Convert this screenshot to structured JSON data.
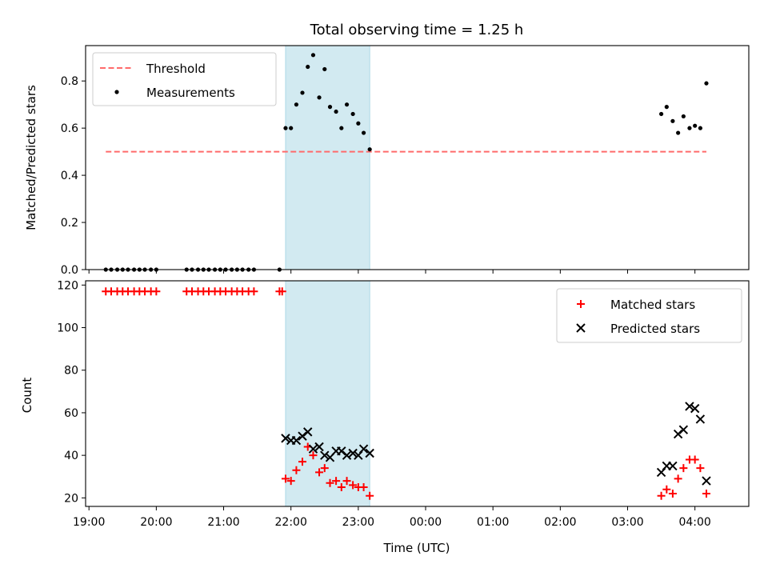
{
  "chart_data": [
    {
      "type": "scatter",
      "title": "Total observing time = 1.25 h",
      "xlabel": "",
      "ylabel": "Matched/Predicted stars",
      "ylim": [
        0,
        0.95
      ],
      "yticks": [
        "0.0",
        "0.2",
        "0.4",
        "0.6",
        "0.8"
      ],
      "ytick_values": [
        0,
        0.2,
        0.4,
        0.6,
        0.8
      ],
      "xlim_hours": [
        18.95,
        28.8
      ],
      "highlight_span_hours": [
        21.92,
        23.17
      ],
      "highlight_color": "#add8e6",
      "legend_position": "upper left",
      "threshold": {
        "name": "Threshold",
        "value": 0.5,
        "x_hours": [
          19.25,
          28.17
        ],
        "color": "#ff6b6b"
      },
      "series": [
        {
          "name": "Measurements",
          "color": "#000000",
          "x_hours": [
            19.25,
            19.33,
            19.42,
            19.5,
            19.58,
            19.67,
            19.75,
            19.83,
            19.92,
            20.0,
            20.45,
            20.53,
            20.62,
            20.7,
            20.78,
            20.87,
            20.95,
            21.03,
            21.12,
            21.2,
            21.28,
            21.37,
            21.45,
            21.83,
            21.92,
            22.0,
            22.08,
            22.17,
            22.25,
            22.33,
            22.42,
            22.5,
            22.58,
            22.67,
            22.75,
            22.83,
            22.92,
            23.0,
            23.08,
            23.17,
            27.5,
            27.58,
            27.67,
            27.75,
            27.83,
            27.92,
            28.0,
            28.08,
            28.17
          ],
          "y": [
            0,
            0,
            0,
            0,
            0,
            0,
            0,
            0,
            0,
            0,
            0,
            0,
            0,
            0,
            0,
            0,
            0,
            0,
            0,
            0,
            0,
            0,
            0,
            0,
            0.6,
            0.6,
            0.7,
            0.75,
            0.86,
            0.91,
            0.73,
            0.85,
            0.69,
            0.67,
            0.6,
            0.7,
            0.66,
            0.62,
            0.58,
            0.51,
            0.66,
            0.69,
            0.63,
            0.58,
            0.65,
            0.6,
            0.61,
            0.6,
            0.79
          ]
        }
      ]
    },
    {
      "type": "scatter",
      "title": "",
      "xlabel": "Time (UTC)",
      "ylabel": "Count",
      "ylim": [
        16,
        122
      ],
      "yticks": [
        "20",
        "40",
        "60",
        "80",
        "100",
        "120"
      ],
      "ytick_values": [
        20,
        40,
        60,
        80,
        100,
        120
      ],
      "xticks": [
        "19:00",
        "20:00",
        "21:00",
        "22:00",
        "23:00",
        "00:00",
        "01:00",
        "02:00",
        "03:00",
        "04:00"
      ],
      "xtick_hours": [
        19,
        20,
        21,
        22,
        23,
        24,
        25,
        26,
        27,
        28
      ],
      "xlim_hours": [
        18.95,
        28.8
      ],
      "highlight_span_hours": [
        21.92,
        23.17
      ],
      "highlight_color": "#add8e6",
      "legend_position": "upper right",
      "series": [
        {
          "name": "Matched stars",
          "marker": "+",
          "color": "#ff0000",
          "x_hours": [
            19.25,
            19.33,
            19.42,
            19.5,
            19.58,
            19.67,
            19.75,
            19.83,
            19.92,
            20.0,
            20.45,
            20.53,
            20.62,
            20.7,
            20.78,
            20.87,
            20.95,
            21.03,
            21.12,
            21.2,
            21.28,
            21.37,
            21.45,
            21.83,
            21.87,
            21.92,
            22.0,
            22.08,
            22.17,
            22.25,
            22.33,
            22.42,
            22.5,
            22.58,
            22.67,
            22.75,
            22.83,
            22.92,
            23.0,
            23.08,
            23.17,
            27.5,
            27.58,
            27.67,
            27.75,
            27.83,
            27.92,
            28.0,
            28.08,
            28.17
          ],
          "y": [
            117,
            117,
            117,
            117,
            117,
            117,
            117,
            117,
            117,
            117,
            117,
            117,
            117,
            117,
            117,
            117,
            117,
            117,
            117,
            117,
            117,
            117,
            117,
            117,
            117,
            29,
            28,
            33,
            37,
            44,
            40,
            32,
            34,
            27,
            28,
            25,
            28,
            26,
            25,
            25,
            21,
            21,
            24,
            22,
            29,
            34,
            38,
            38,
            34,
            22
          ]
        },
        {
          "name": "Predicted stars",
          "marker": "x",
          "color": "#000000",
          "x_hours": [
            21.92,
            22.0,
            22.08,
            22.17,
            22.25,
            22.33,
            22.42,
            22.5,
            22.58,
            22.67,
            22.75,
            22.83,
            22.92,
            23.0,
            23.08,
            23.17,
            27.5,
            27.58,
            27.67,
            27.75,
            27.83,
            27.92,
            28.0,
            28.08,
            28.17
          ],
          "y": [
            48,
            47,
            47,
            49,
            51,
            43,
            44,
            40,
            39,
            42,
            42,
            40,
            41,
            40,
            43,
            41,
            32,
            35,
            35,
            50,
            52,
            63,
            62,
            57,
            28
          ]
        }
      ]
    }
  ]
}
